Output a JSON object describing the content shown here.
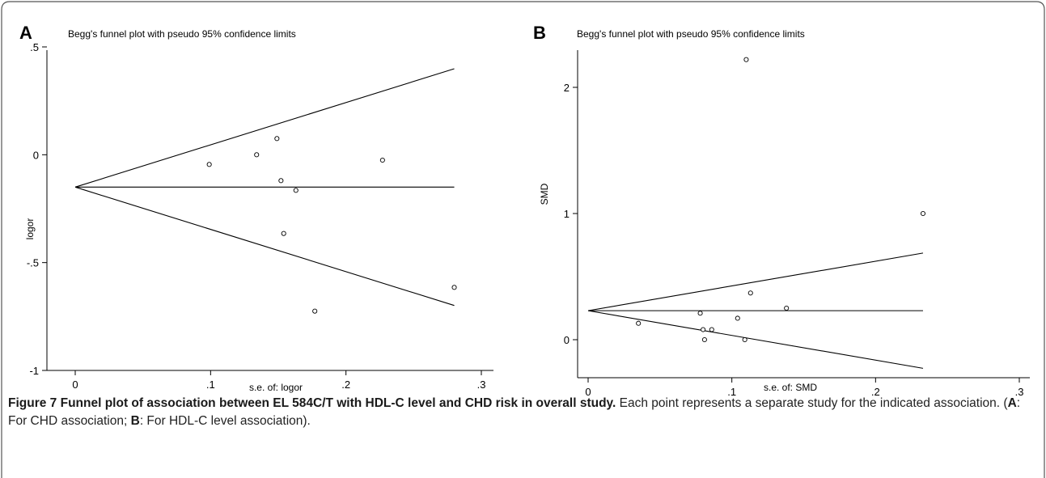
{
  "caption": {
    "label": "Figure 7",
    "title": "Funnel plot of association between EL 584C/T with HDL-C level and CHD risk in overall study.",
    "text1": " Each point represents a separate study for the indicated association. (",
    "a_letter": "A",
    "text2": ": For CHD association; ",
    "b_letter": "B",
    "text3": ": For HDL-C level association)."
  },
  "chart_data": [
    {
      "type": "scatter",
      "panel": "A",
      "title": "Begg's funnel plot with pseudo 95% confidence limits",
      "xlabel": "s.e. of: logor",
      "ylabel": "logor",
      "xlim": [
        0,
        0.3
      ],
      "ylim": [
        -1,
        0.5
      ],
      "x_ticks": [
        0,
        0.1,
        0.2,
        0.3
      ],
      "x_tick_labels": [
        "0",
        ".1",
        ".2",
        ".3"
      ],
      "y_ticks": [
        0.5,
        0,
        -0.5,
        -1
      ],
      "y_tick_labels": [
        ".5",
        "0",
        "-.5",
        "-1"
      ],
      "pooled_estimate": -0.15,
      "funnel_max_se": 0.28,
      "points": [
        {
          "x": 0.099,
          "y": -0.045
        },
        {
          "x": 0.134,
          "y": 0.0
        },
        {
          "x": 0.149,
          "y": 0.075
        },
        {
          "x": 0.152,
          "y": -0.12
        },
        {
          "x": 0.154,
          "y": -0.365
        },
        {
          "x": 0.163,
          "y": -0.165
        },
        {
          "x": 0.177,
          "y": -0.725
        },
        {
          "x": 0.227,
          "y": -0.025
        },
        {
          "x": 0.28,
          "y": -0.615
        }
      ]
    },
    {
      "type": "scatter",
      "panel": "B",
      "title": "Begg's funnel plot with pseudo 95% confidence limits",
      "xlabel": "s.e. of: SMD",
      "ylabel": "SMD",
      "xlim": [
        0,
        0.3
      ],
      "ylim": [
        0,
        2
      ],
      "x_ticks": [
        0,
        0.1,
        0.2,
        0.3
      ],
      "x_tick_labels": [
        "0",
        ".1",
        ".2",
        ".3"
      ],
      "y_ticks": [
        2,
        1,
        0
      ],
      "y_tick_labels": [
        "2",
        "1",
        "0"
      ],
      "pooled_estimate": 0.23,
      "funnel_max_se": 0.233,
      "points": [
        {
          "x": 0.035,
          "y": 0.13
        },
        {
          "x": 0.078,
          "y": 0.21
        },
        {
          "x": 0.08,
          "y": 0.08
        },
        {
          "x": 0.081,
          "y": 0.0
        },
        {
          "x": 0.086,
          "y": 0.08
        },
        {
          "x": 0.104,
          "y": 0.17
        },
        {
          "x": 0.109,
          "y": 0.0
        },
        {
          "x": 0.11,
          "y": 2.22
        },
        {
          "x": 0.113,
          "y": 0.37
        },
        {
          "x": 0.138,
          "y": 0.25
        },
        {
          "x": 0.233,
          "y": 1.0
        }
      ]
    }
  ]
}
